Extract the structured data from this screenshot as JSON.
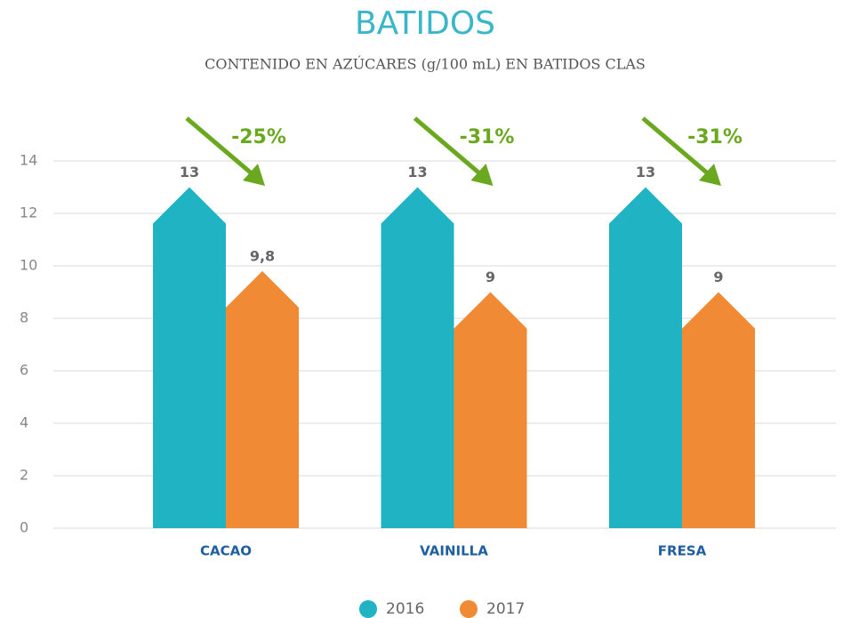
{
  "chart_data": {
    "type": "bar",
    "title": "BATIDOS",
    "subtitle": "CONTENIDO EN AZÚCARES (g/100 mL) EN BATIDOS CLAS",
    "categories": [
      "CACAO",
      "VAINILLA",
      "FRESA"
    ],
    "series": [
      {
        "name": "2016",
        "color": "#1fb3c4",
        "values": [
          13,
          13,
          13
        ]
      },
      {
        "name": "2017",
        "color": "#f08a34",
        "values": [
          9.8,
          9,
          9
        ],
        "value_labels": [
          "9,8",
          "9",
          "9"
        ]
      }
    ],
    "annotations": [
      "-25%",
      "-31%",
      "-31%"
    ],
    "annotation_color": "#6aa820",
    "ylim": [
      0,
      14
    ],
    "yticks": [
      0,
      2,
      4,
      6,
      8,
      10,
      12,
      14
    ],
    "grid": true,
    "legend": "bottom"
  }
}
